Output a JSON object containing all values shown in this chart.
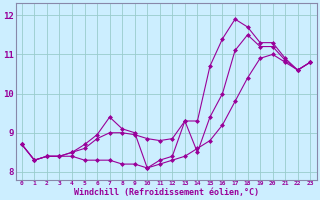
{
  "xlabel": "Windchill (Refroidissement éolien,°C)",
  "bg_color": "#cceeff",
  "line_color": "#990099",
  "grid_color": "#99cccc",
  "xlim": [
    -0.5,
    23.5
  ],
  "ylim": [
    7.8,
    12.3
  ],
  "yticks": [
    8,
    9,
    10,
    11,
    12
  ],
  "xticks": [
    0,
    1,
    2,
    3,
    4,
    5,
    6,
    7,
    8,
    9,
    10,
    11,
    12,
    13,
    14,
    15,
    16,
    17,
    18,
    19,
    20,
    21,
    22,
    23
  ],
  "line1_x": [
    0,
    1,
    2,
    3,
    4,
    5,
    6,
    7,
    8,
    9,
    10,
    11,
    12,
    13,
    14,
    15,
    16,
    17,
    18,
    19,
    20,
    21,
    22,
    23
  ],
  "line1_y": [
    8.7,
    8.3,
    8.4,
    8.4,
    8.4,
    8.3,
    8.3,
    8.3,
    8.2,
    8.2,
    8.1,
    8.2,
    8.3,
    8.4,
    8.6,
    8.8,
    9.2,
    9.8,
    10.4,
    10.9,
    11.0,
    10.8,
    10.6,
    10.8
  ],
  "line2_x": [
    0,
    1,
    2,
    3,
    4,
    5,
    6,
    7,
    8,
    9,
    10,
    11,
    12,
    13,
    14,
    15,
    16,
    17,
    18,
    19,
    20,
    21,
    22,
    23
  ],
  "line2_y": [
    8.7,
    8.3,
    8.4,
    8.4,
    8.5,
    8.6,
    8.85,
    9.0,
    9.0,
    8.95,
    8.85,
    8.8,
    8.85,
    9.3,
    9.3,
    10.7,
    11.4,
    11.9,
    11.7,
    11.3,
    11.3,
    10.9,
    10.6,
    10.8
  ],
  "line3_x": [
    0,
    1,
    2,
    3,
    4,
    5,
    6,
    7,
    8,
    9,
    10,
    11,
    12,
    13,
    14,
    15,
    16,
    17,
    18,
    19,
    20,
    21,
    22,
    23
  ],
  "line3_y": [
    8.7,
    8.3,
    8.4,
    8.4,
    8.5,
    8.7,
    8.95,
    9.4,
    9.1,
    9.0,
    8.1,
    8.3,
    8.4,
    9.3,
    8.5,
    9.4,
    10.0,
    11.1,
    11.5,
    11.2,
    11.2,
    10.85,
    10.6,
    10.8
  ]
}
